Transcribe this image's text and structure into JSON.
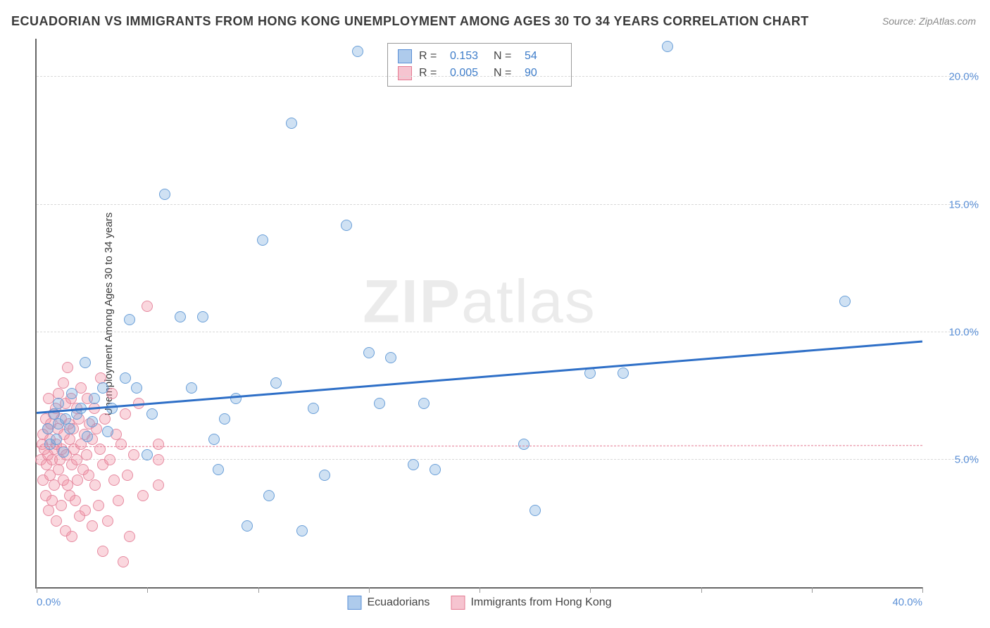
{
  "title": "ECUADORIAN VS IMMIGRANTS FROM HONG KONG UNEMPLOYMENT AMONG AGES 30 TO 34 YEARS CORRELATION CHART",
  "source": "Source: ZipAtlas.com",
  "y_axis_label": "Unemployment Among Ages 30 to 34 years",
  "watermark_bold": "ZIP",
  "watermark_rest": "atlas",
  "chart": {
    "type": "scatter",
    "x_domain": [
      0,
      40
    ],
    "y_domain": [
      0,
      21.5
    ],
    "x_ticks": [
      0,
      5,
      10,
      15,
      20,
      25,
      30,
      35,
      40
    ],
    "x_tick_labels": {
      "0": "0.0%",
      "40": "40.0%"
    },
    "y_ticks": [
      5,
      10,
      15,
      20
    ],
    "y_tick_labels": {
      "5": "5.0%",
      "10": "10.0%",
      "15": "15.0%",
      "20": "20.0%"
    },
    "grid_color": "#d8d8d8",
    "background_color": "#ffffff",
    "axis_color": "#666666",
    "tick_label_color": "#5a8fd6",
    "series": [
      {
        "name": "Ecuadorians",
        "color_fill": "rgba(118,168,222,0.35)",
        "color_stroke": "#6a9fd8",
        "marker_radius": 8,
        "R": "0.153",
        "N": "54",
        "legend_swatch_fill": "#aecbec",
        "legend_swatch_border": "#5a8fd6",
        "trend": {
          "x1": 0,
          "y1": 6.8,
          "x2": 40,
          "y2": 9.6,
          "color": "#2e6fc7",
          "width": 3,
          "dash": false
        },
        "points": [
          [
            0.5,
            6.2
          ],
          [
            0.6,
            5.6
          ],
          [
            0.8,
            6.8
          ],
          [
            0.9,
            5.8
          ],
          [
            1.0,
            6.4
          ],
          [
            1.0,
            7.2
          ],
          [
            1.2,
            5.3
          ],
          [
            1.3,
            6.6
          ],
          [
            1.5,
            6.2
          ],
          [
            1.6,
            7.6
          ],
          [
            1.8,
            6.8
          ],
          [
            2.0,
            7.0
          ],
          [
            2.2,
            8.8
          ],
          [
            2.3,
            5.9
          ],
          [
            2.5,
            6.5
          ],
          [
            2.6,
            7.4
          ],
          [
            3.0,
            7.8
          ],
          [
            3.2,
            6.1
          ],
          [
            3.4,
            7.0
          ],
          [
            4.0,
            8.2
          ],
          [
            4.2,
            10.5
          ],
          [
            4.5,
            7.8
          ],
          [
            5.0,
            5.2
          ],
          [
            5.2,
            6.8
          ],
          [
            5.8,
            15.4
          ],
          [
            6.5,
            10.6
          ],
          [
            7.0,
            7.8
          ],
          [
            7.5,
            10.6
          ],
          [
            8.0,
            5.8
          ],
          [
            8.2,
            4.6
          ],
          [
            8.5,
            6.6
          ],
          [
            9.0,
            7.4
          ],
          [
            9.5,
            2.4
          ],
          [
            10.2,
            13.6
          ],
          [
            10.5,
            3.6
          ],
          [
            10.8,
            8.0
          ],
          [
            11.5,
            18.2
          ],
          [
            12.0,
            2.2
          ],
          [
            12.5,
            7.0
          ],
          [
            13.0,
            4.4
          ],
          [
            14.0,
            14.2
          ],
          [
            14.5,
            21.0
          ],
          [
            15.0,
            9.2
          ],
          [
            15.5,
            7.2
          ],
          [
            16.0,
            9.0
          ],
          [
            17.0,
            4.8
          ],
          [
            17.5,
            7.2
          ],
          [
            18.0,
            4.6
          ],
          [
            22.0,
            5.6
          ],
          [
            22.5,
            3.0
          ],
          [
            25.0,
            8.4
          ],
          [
            26.5,
            8.4
          ],
          [
            28.5,
            21.2
          ],
          [
            36.5,
            11.2
          ]
        ]
      },
      {
        "name": "Immigrants from Hong Kong",
        "color_fill": "rgba(240,140,160,0.35)",
        "color_stroke": "#e68aa0",
        "marker_radius": 8,
        "R": "0.005",
        "N": "90",
        "legend_swatch_fill": "#f6c4d0",
        "legend_swatch_border": "#e47a92",
        "trend": {
          "x1": 0,
          "y1": 5.5,
          "x2": 40,
          "y2": 5.55,
          "color": "#e47a92",
          "width": 1,
          "dash": true
        },
        "points": [
          [
            0.2,
            5.0
          ],
          [
            0.25,
            5.6
          ],
          [
            0.3,
            4.2
          ],
          [
            0.3,
            6.0
          ],
          [
            0.35,
            5.4
          ],
          [
            0.4,
            3.6
          ],
          [
            0.4,
            6.6
          ],
          [
            0.45,
            4.8
          ],
          [
            0.5,
            5.2
          ],
          [
            0.5,
            6.2
          ],
          [
            0.55,
            3.0
          ],
          [
            0.55,
            7.4
          ],
          [
            0.6,
            5.8
          ],
          [
            0.6,
            4.4
          ],
          [
            0.65,
            6.4
          ],
          [
            0.7,
            5.0
          ],
          [
            0.7,
            3.4
          ],
          [
            0.75,
            6.8
          ],
          [
            0.8,
            5.4
          ],
          [
            0.8,
            4.0
          ],
          [
            0.85,
            7.0
          ],
          [
            0.9,
            5.6
          ],
          [
            0.9,
            2.6
          ],
          [
            0.95,
            6.2
          ],
          [
            1.0,
            4.6
          ],
          [
            1.0,
            7.6
          ],
          [
            1.05,
            5.0
          ],
          [
            1.1,
            3.2
          ],
          [
            1.1,
            6.6
          ],
          [
            1.15,
            5.4
          ],
          [
            1.2,
            8.0
          ],
          [
            1.2,
            4.2
          ],
          [
            1.25,
            6.0
          ],
          [
            1.3,
            2.2
          ],
          [
            1.3,
            7.2
          ],
          [
            1.35,
            5.2
          ],
          [
            1.4,
            4.0
          ],
          [
            1.4,
            8.6
          ],
          [
            1.45,
            6.4
          ],
          [
            1.5,
            3.6
          ],
          [
            1.5,
            5.8
          ],
          [
            1.55,
            7.4
          ],
          [
            1.6,
            4.8
          ],
          [
            1.6,
            2.0
          ],
          [
            1.65,
            6.2
          ],
          [
            1.7,
            5.4
          ],
          [
            1.75,
            3.4
          ],
          [
            1.8,
            7.0
          ],
          [
            1.8,
            5.0
          ],
          [
            1.85,
            4.2
          ],
          [
            1.9,
            6.6
          ],
          [
            1.95,
            2.8
          ],
          [
            2.0,
            5.6
          ],
          [
            2.0,
            7.8
          ],
          [
            2.1,
            4.6
          ],
          [
            2.15,
            6.0
          ],
          [
            2.2,
            3.0
          ],
          [
            2.25,
            5.2
          ],
          [
            2.3,
            7.4
          ],
          [
            2.35,
            4.4
          ],
          [
            2.4,
            6.4
          ],
          [
            2.5,
            2.4
          ],
          [
            2.5,
            5.8
          ],
          [
            2.6,
            7.0
          ],
          [
            2.65,
            4.0
          ],
          [
            2.7,
            6.2
          ],
          [
            2.8,
            3.2
          ],
          [
            2.85,
            5.4
          ],
          [
            2.9,
            8.2
          ],
          [
            3.0,
            4.8
          ],
          [
            3.0,
            1.4
          ],
          [
            3.1,
            6.6
          ],
          [
            3.2,
            2.6
          ],
          [
            3.3,
            5.0
          ],
          [
            3.4,
            7.6
          ],
          [
            3.5,
            4.2
          ],
          [
            3.6,
            6.0
          ],
          [
            3.7,
            3.4
          ],
          [
            3.8,
            5.6
          ],
          [
            3.9,
            1.0
          ],
          [
            4.0,
            6.8
          ],
          [
            4.1,
            4.4
          ],
          [
            4.2,
            2.0
          ],
          [
            4.4,
            5.2
          ],
          [
            4.6,
            7.2
          ],
          [
            4.8,
            3.6
          ],
          [
            5.0,
            11.0
          ],
          [
            5.5,
            5.0
          ],
          [
            5.5,
            5.6
          ],
          [
            5.5,
            4.0
          ]
        ]
      }
    ]
  },
  "legend_top_labels": {
    "R": "R =",
    "N": "N ="
  },
  "legend_bottom": [
    {
      "label": "Ecuadorians"
    },
    {
      "label": "Immigrants from Hong Kong"
    }
  ]
}
